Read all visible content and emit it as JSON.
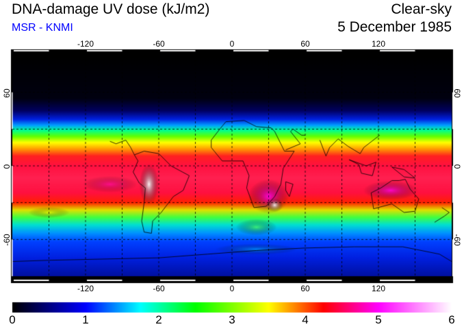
{
  "header": {
    "title": "DNA-damage UV dose (kJ/m2)",
    "subtitle": "MSR - KNMI",
    "mode": "Clear-sky",
    "date": "5 December 1985"
  },
  "map": {
    "lon_labels": [
      "-120",
      "-60",
      "0",
      "60",
      "120"
    ],
    "lon_values": [
      -120,
      -60,
      0,
      60,
      120
    ],
    "lat_labels": [
      "60",
      "0",
      "-60"
    ],
    "lat_values": [
      60,
      0,
      -60
    ],
    "lat_labels_right": [
      "60",
      "0",
      "-60"
    ]
  },
  "colorbar": {
    "labels": [
      "0",
      "1",
      "2",
      "3",
      "4",
      "5",
      "6"
    ],
    "values": [
      0,
      1,
      2,
      3,
      4,
      5,
      6
    ],
    "colors": [
      "#000000",
      "#0000ff",
      "#00ffff",
      "#00ff00",
      "#ffff00",
      "#ff0000",
      "#ff00ff",
      "#ffffff"
    ]
  }
}
